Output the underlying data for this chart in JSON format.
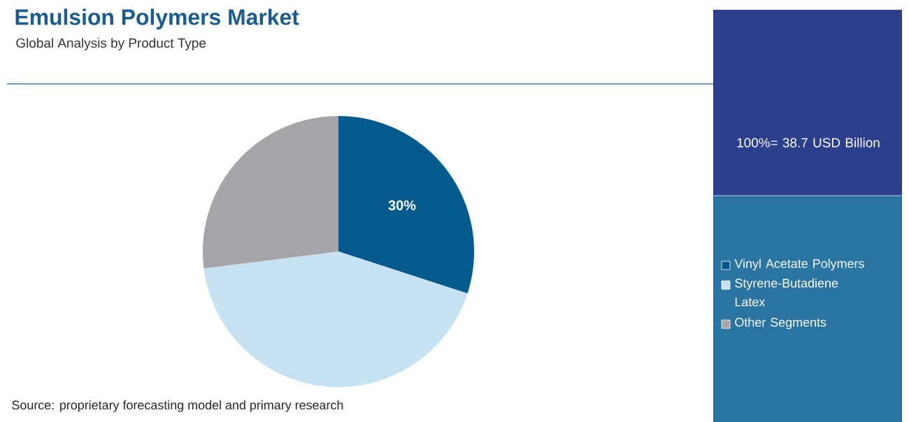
{
  "chart_data": {
    "type": "pie",
    "title": "Emulsion Polymers Market",
    "subtitle": "Global Analysis by Product Type",
    "categories": [
      "Vinyl Acetate Polymers",
      "Styrene-Butadiene Latex",
      "Other Segments"
    ],
    "values": [
      30,
      43,
      27
    ],
    "colors": [
      "#045a8d",
      "#c6e2f3",
      "#a5a4a8"
    ],
    "value_labels": [
      "30%",
      null,
      null
    ],
    "legend": "right",
    "annotations": [
      "100%= 38.7 USD Billion",
      "Source: proprietary forecasting model and primary research"
    ]
  }
}
